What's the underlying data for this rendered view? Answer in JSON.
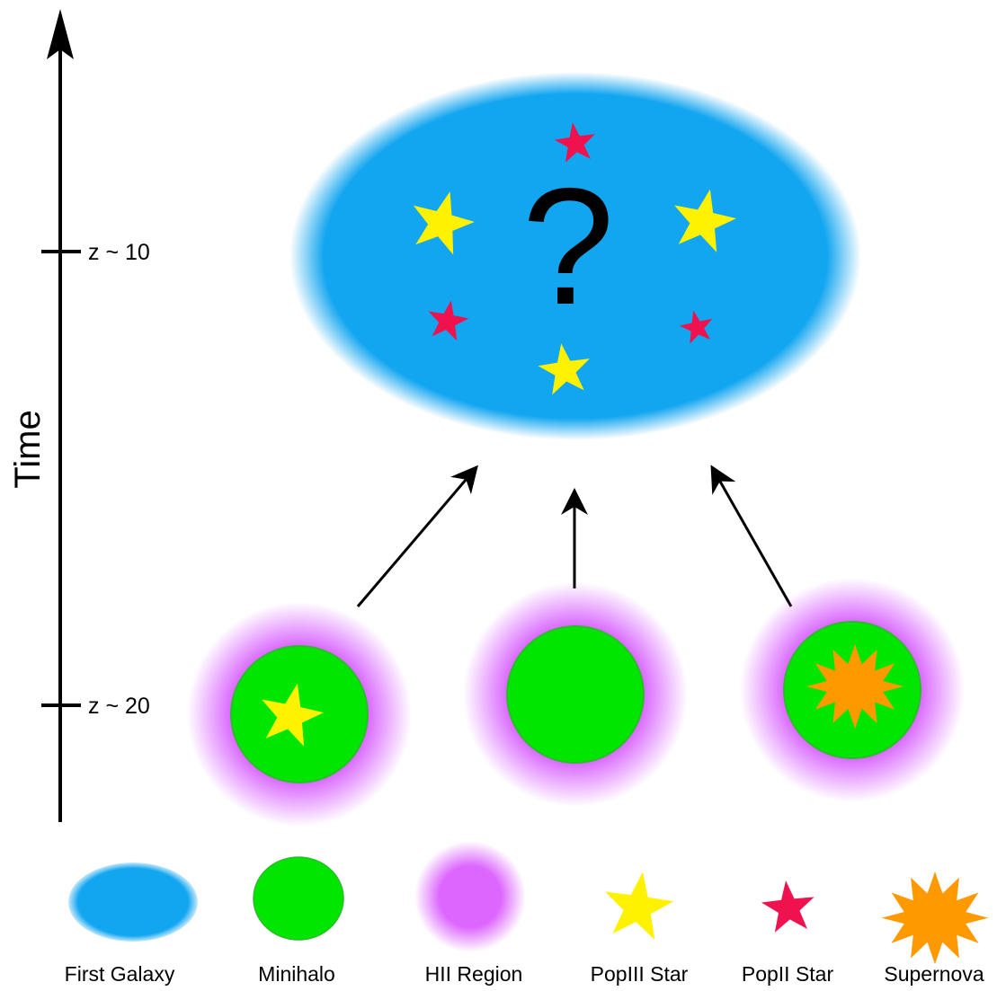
{
  "timeline": {
    "axis_label": "Time",
    "ticks": [
      {
        "label": "z ~ 10"
      },
      {
        "label": "z ~ 20"
      }
    ]
  },
  "galaxy": {
    "mark": "?",
    "colors": {
      "fill": "#12a5f0",
      "popiii": "#fff200",
      "popii": "#f0124f"
    }
  },
  "minihalos": [
    {
      "content": "popiii-star"
    },
    {
      "content": "empty"
    },
    {
      "content": "supernova"
    }
  ],
  "legend": {
    "items": [
      {
        "key": "first-galaxy",
        "label": "First Galaxy",
        "color": "#12a5f0"
      },
      {
        "key": "minihalo",
        "label": "Minihalo",
        "color": "#00e600"
      },
      {
        "key": "hii-region",
        "label": "HII Region",
        "color": "#dd66ff"
      },
      {
        "key": "popiii-star",
        "label": "PopIII Star",
        "color": "#fff200"
      },
      {
        "key": "popii-star",
        "label": "PopII Star",
        "color": "#f0124f"
      },
      {
        "key": "supernova",
        "label": "Supernova",
        "color": "#ff9900"
      }
    ]
  }
}
